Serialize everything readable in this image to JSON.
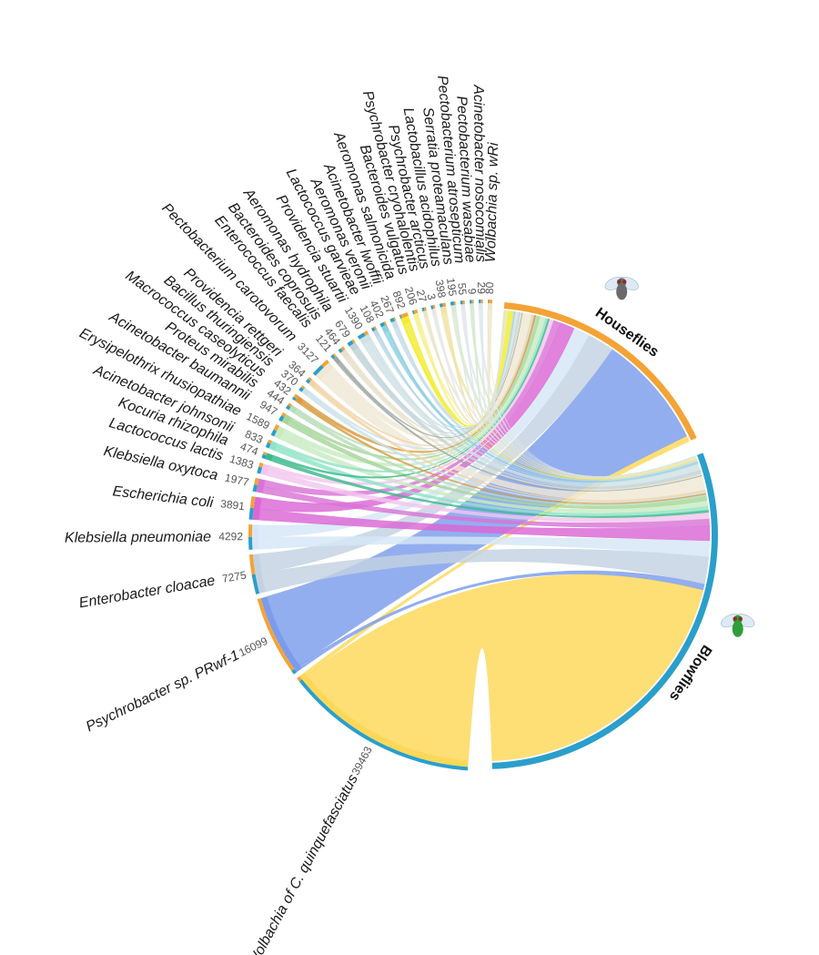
{
  "chart_data": {
    "type": "chord",
    "title": "",
    "hosts": [
      {
        "name": "Houseflies",
        "color": "#F4A335",
        "icon": "housefly-icon"
      },
      {
        "name": "Blowflies",
        "color": "#2A9FCB",
        "icon": "blowfly-icon"
      }
    ],
    "species": [
      {
        "name": "Wolbachia sp. wRi",
        "count": "80",
        "color": "#EDE6C9",
        "hf": 0.9
      },
      {
        "name": "Acinetobacter nosocomialis",
        "count": "29",
        "color": "#DDE8EE",
        "hf": 0.5
      },
      {
        "name": "Pectobacterium wasabiae",
        "count": "9",
        "color": "#D5E8D0",
        "hf": 0.5
      },
      {
        "name": "Pectobacterium atrosepticum",
        "count": "55",
        "color": "#E0E6EC",
        "hf": 0.5
      },
      {
        "name": "Serratia proteamaculans",
        "count": "195",
        "color": "#DCE8D5",
        "hf": 0.3
      },
      {
        "name": "Lactobacillus acidophilus",
        "count": "398",
        "color": "#F0E3A5",
        "hf": 0.5
      },
      {
        "name": "Psychrobacter arcticus",
        "count": "3",
        "color": "#E6E6E6",
        "hf": 0.5
      },
      {
        "name": "Psychrobacter cryohalolentis",
        "count": "27",
        "color": "#ECE4C4",
        "hf": 0.5
      },
      {
        "name": "Bacteroides vulgatus",
        "count": "206",
        "color": "#F6F08C",
        "hf": 0.7
      },
      {
        "name": "Aeromonas salmonicida",
        "count": "892",
        "color": "#F2EC2E",
        "hf": 0.85
      },
      {
        "name": "Acinetobacter lwoffii",
        "count": "267",
        "color": "#C7DCE7",
        "hf": 0.3
      },
      {
        "name": "Aeromonas veronii",
        "count": "402",
        "color": "#8FD0E0",
        "hf": 0.3
      },
      {
        "name": "Lactococcus garvieae",
        "count": "108",
        "color": "#B9D7E6",
        "hf": 0.4
      },
      {
        "name": "Providencia stuartii",
        "count": "1390",
        "color": "#CFE2E4",
        "hf": 0.35
      },
      {
        "name": "Aeromonas hydrophila",
        "count": "679",
        "color": "#BFD2D7",
        "hf": 0.3
      },
      {
        "name": "Bacteroides coprosuis",
        "count": "464",
        "color": "#E7E1C9",
        "hf": 0.5
      },
      {
        "name": "Enterococcus faecalis",
        "count": "121",
        "color": "#9CA7A0",
        "hf": 0.4
      },
      {
        "name": "Pectobacterium carotovorum",
        "count": "3127",
        "color": "#EFE8D4",
        "hf": 0.4
      },
      {
        "name": "Providencia rettgeri",
        "count": "364",
        "color": "#F2D3A4",
        "hf": 0.4
      },
      {
        "name": "Bacillus thuringiensis",
        "count": "370",
        "color": "#CBE1E9",
        "hf": 0.4
      },
      {
        "name": "Macrococcus caseolyticus",
        "count": "432",
        "color": "#D99A3C",
        "hf": 0.6
      },
      {
        "name": "Proteus mirabilis",
        "count": "444",
        "color": "#B7DDB7",
        "hf": 0.4
      },
      {
        "name": "Acinetobacter baumannii",
        "count": "947",
        "color": "#A6D69A",
        "hf": 0.4
      },
      {
        "name": "Erysipelothrix rhusiopathiae",
        "count": "1589",
        "color": "#C8EBC2",
        "hf": 0.5
      },
      {
        "name": "Acinetobacter johnsonii",
        "count": "833",
        "color": "#8FE3C6",
        "hf": 0.4
      },
      {
        "name": "Kocuria rhizophila",
        "count": "474",
        "color": "#3AB98C",
        "hf": 0.4
      },
      {
        "name": "Lactococcus lactis",
        "count": "1383",
        "color": "#F2C6EE",
        "hf": 0.4
      },
      {
        "name": "Klebsiella oxytoca",
        "count": "1977",
        "color": "#D974D7",
        "hf": 0.5
      },
      {
        "name": "Escherichia coli",
        "count": "3891",
        "color": "#DA67D5",
        "hf": 0.5
      },
      {
        "name": "Klebsiella pneumoniae",
        "count": "4292",
        "color": "#D6E6F7",
        "hf": 0.5
      },
      {
        "name": "Enterobacter cloacae",
        "count": "7275",
        "color": "#C3D2E2",
        "hf": 0.5
      },
      {
        "name": "Psychrobacter sp. PRwf-1",
        "count": "16099",
        "color": "#7B9CEB",
        "hf": 0.95
      },
      {
        "name": "Wolbachia of C. quinquefasciatus",
        "count": "39463",
        "color": "#FDD858",
        "hf": 0.02
      }
    ]
  }
}
